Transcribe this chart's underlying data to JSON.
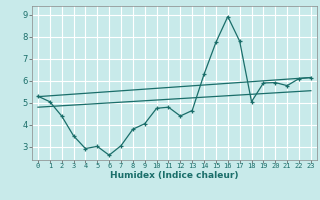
{
  "xlabel": "Humidex (Indice chaleur)",
  "bg_color": "#c8eaea",
  "line_color": "#1a6e6a",
  "grid_color": "#b0d8d8",
  "xlim": [
    -0.5,
    23.5
  ],
  "ylim": [
    2.4,
    9.4
  ],
  "yticks": [
    3,
    4,
    5,
    6,
    7,
    8,
    9
  ],
  "xticks": [
    0,
    1,
    2,
    3,
    4,
    5,
    6,
    7,
    8,
    9,
    10,
    11,
    12,
    13,
    14,
    15,
    16,
    17,
    18,
    19,
    20,
    21,
    22,
    23
  ],
  "line1_x": [
    0,
    1,
    2,
    3,
    4,
    5,
    6,
    7,
    8,
    9,
    10,
    11,
    12,
    13,
    14,
    15,
    16,
    17,
    18,
    19,
    20,
    21,
    22,
    23
  ],
  "line1_y": [
    5.3,
    5.05,
    4.4,
    3.5,
    2.92,
    3.02,
    2.62,
    3.05,
    3.8,
    4.05,
    4.75,
    4.8,
    4.4,
    4.65,
    6.3,
    7.75,
    8.92,
    7.8,
    5.05,
    5.9,
    5.92,
    5.78,
    6.1,
    6.15
  ],
  "line2_x": [
    0,
    23
  ],
  "line2_y": [
    5.28,
    6.15
  ],
  "line3_x": [
    0,
    23
  ],
  "line3_y": [
    4.8,
    5.55
  ]
}
